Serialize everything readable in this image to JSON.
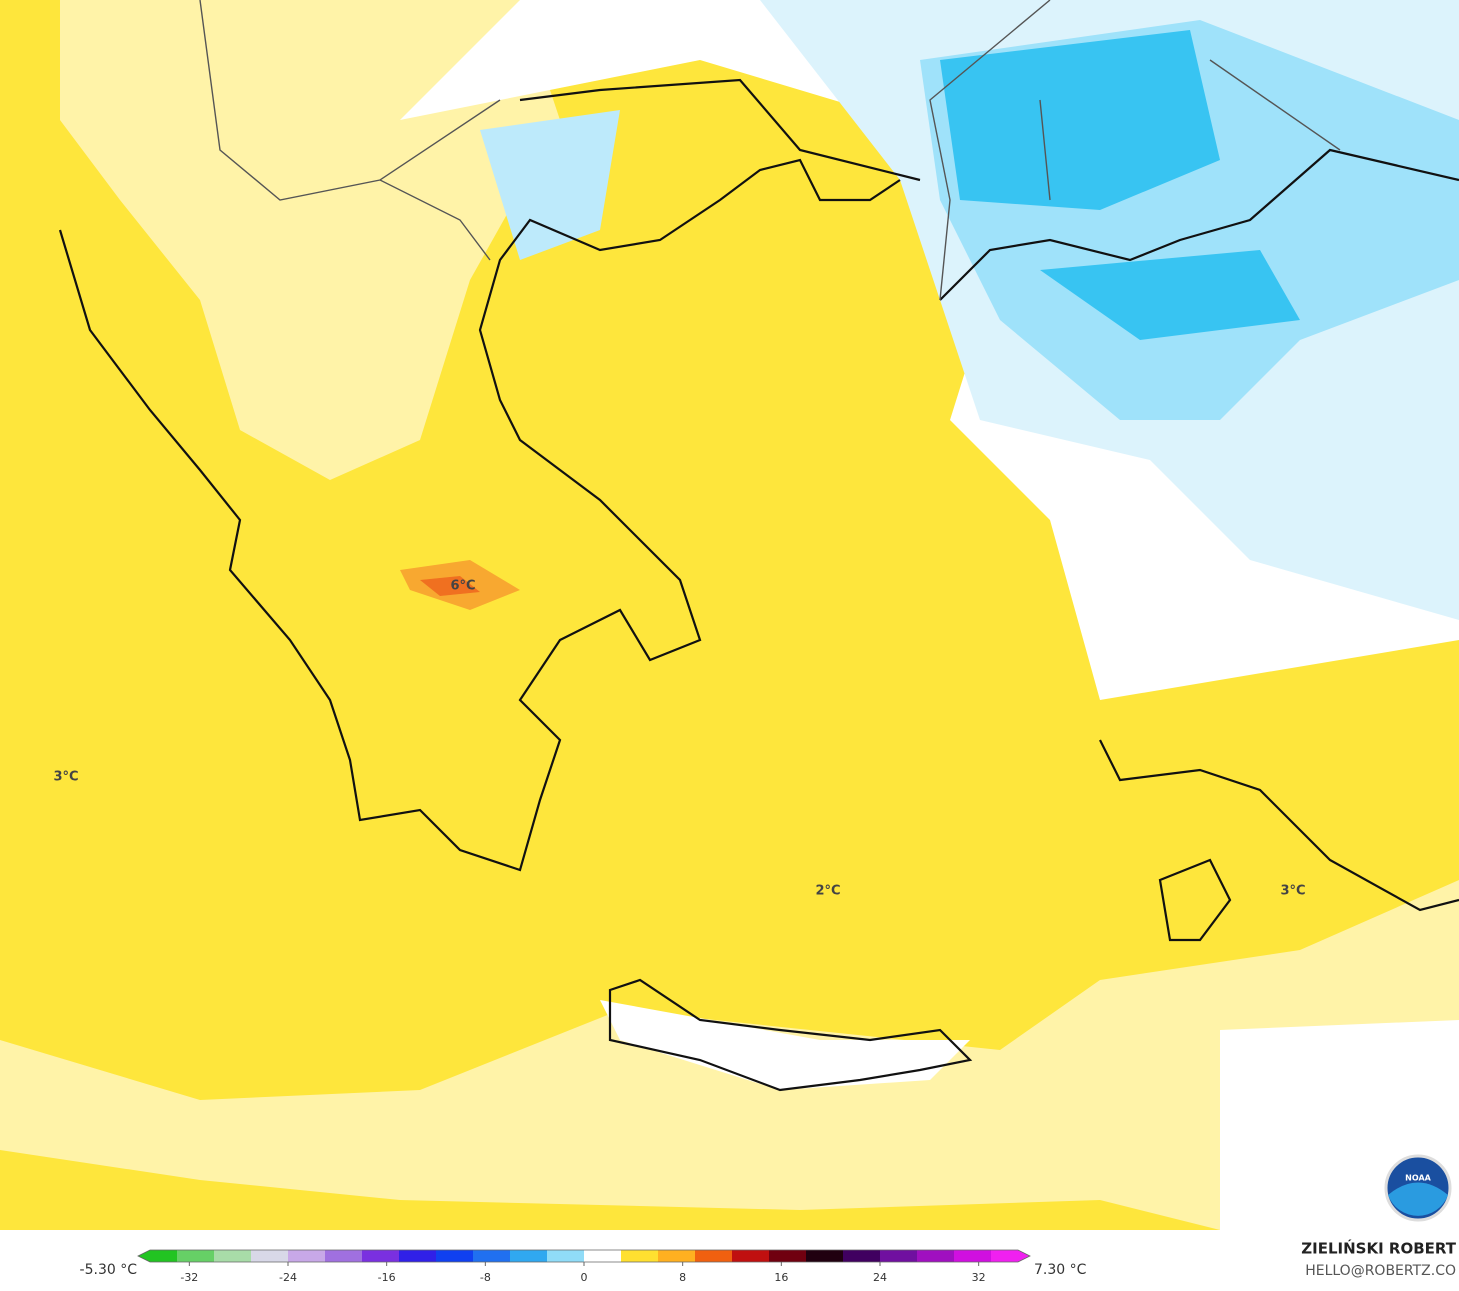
{
  "map": {
    "labels": [
      "3°C",
      "6°C",
      "2°C",
      "3°C"
    ]
  },
  "colorbar": {
    "min_label": "-5.30 °C",
    "max_label": "7.30 °C",
    "lim": [
      -36,
      36
    ],
    "ticks": [
      -32,
      -24,
      -16,
      -8,
      0,
      8,
      16,
      24,
      32
    ],
    "colors": [
      "#22c422",
      "#66d066",
      "#a8dca8",
      "#d8d8e8",
      "#c8a8e8",
      "#a070e0",
      "#7a30e0",
      "#3020e8",
      "#1040f0",
      "#2070f0",
      "#30a8f0",
      "#90dcf8",
      "#ffffff",
      "#ffe030",
      "#ffb020",
      "#f06010",
      "#c01010",
      "#700010",
      "#200010",
      "#400060",
      "#7010a0",
      "#a010c0",
      "#d010e0",
      "#f020f0"
    ]
  },
  "credits": {
    "author": "ZIELIŃSKI ROBERT",
    "contact": "HELLO@ROBERTZ.CO",
    "logo": "NOAA"
  }
}
